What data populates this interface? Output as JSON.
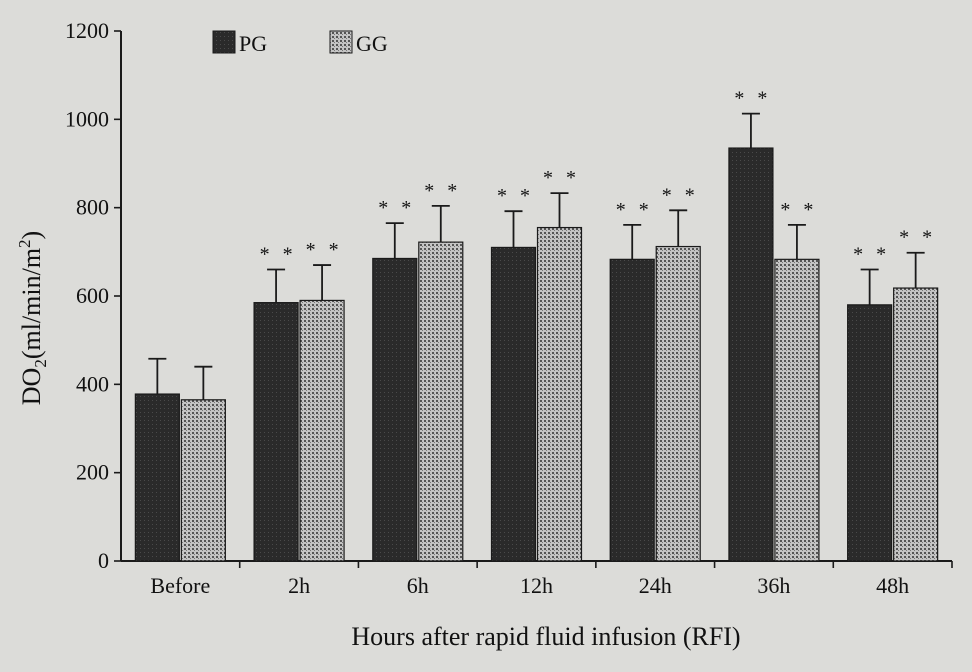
{
  "chart_data": {
    "type": "bar",
    "xlabel": "Hours after rapid fluid infusion (RFI)",
    "ylabel": "DO₂(ml/min/m²)",
    "ylim": [
      0,
      1200
    ],
    "yticks": [
      0,
      200,
      400,
      600,
      800,
      1000,
      1200
    ],
    "categories": [
      "Before",
      "2h",
      "6h",
      "12h",
      "24h",
      "36h",
      "48h"
    ],
    "legend_position": "top-left",
    "series": [
      {
        "name": "PG",
        "pattern": "solid-dark",
        "color": "#2b2b2b",
        "values": [
          378,
          585,
          685,
          710,
          683,
          935,
          580
        ],
        "error": [
          80,
          75,
          80,
          82,
          78,
          78,
          80
        ],
        "significance": [
          "",
          "* *",
          "* *",
          "* *",
          "* *",
          "* *",
          "* *"
        ]
      },
      {
        "name": "GG",
        "pattern": "dotted-grid",
        "color": "#9a9a9a",
        "values": [
          365,
          590,
          722,
          755,
          712,
          683,
          618
        ],
        "error": [
          75,
          80,
          82,
          78,
          82,
          78,
          80
        ],
        "significance": [
          "",
          "* *",
          "* *",
          "* *",
          "* *",
          "* *",
          "* *"
        ]
      }
    ]
  }
}
